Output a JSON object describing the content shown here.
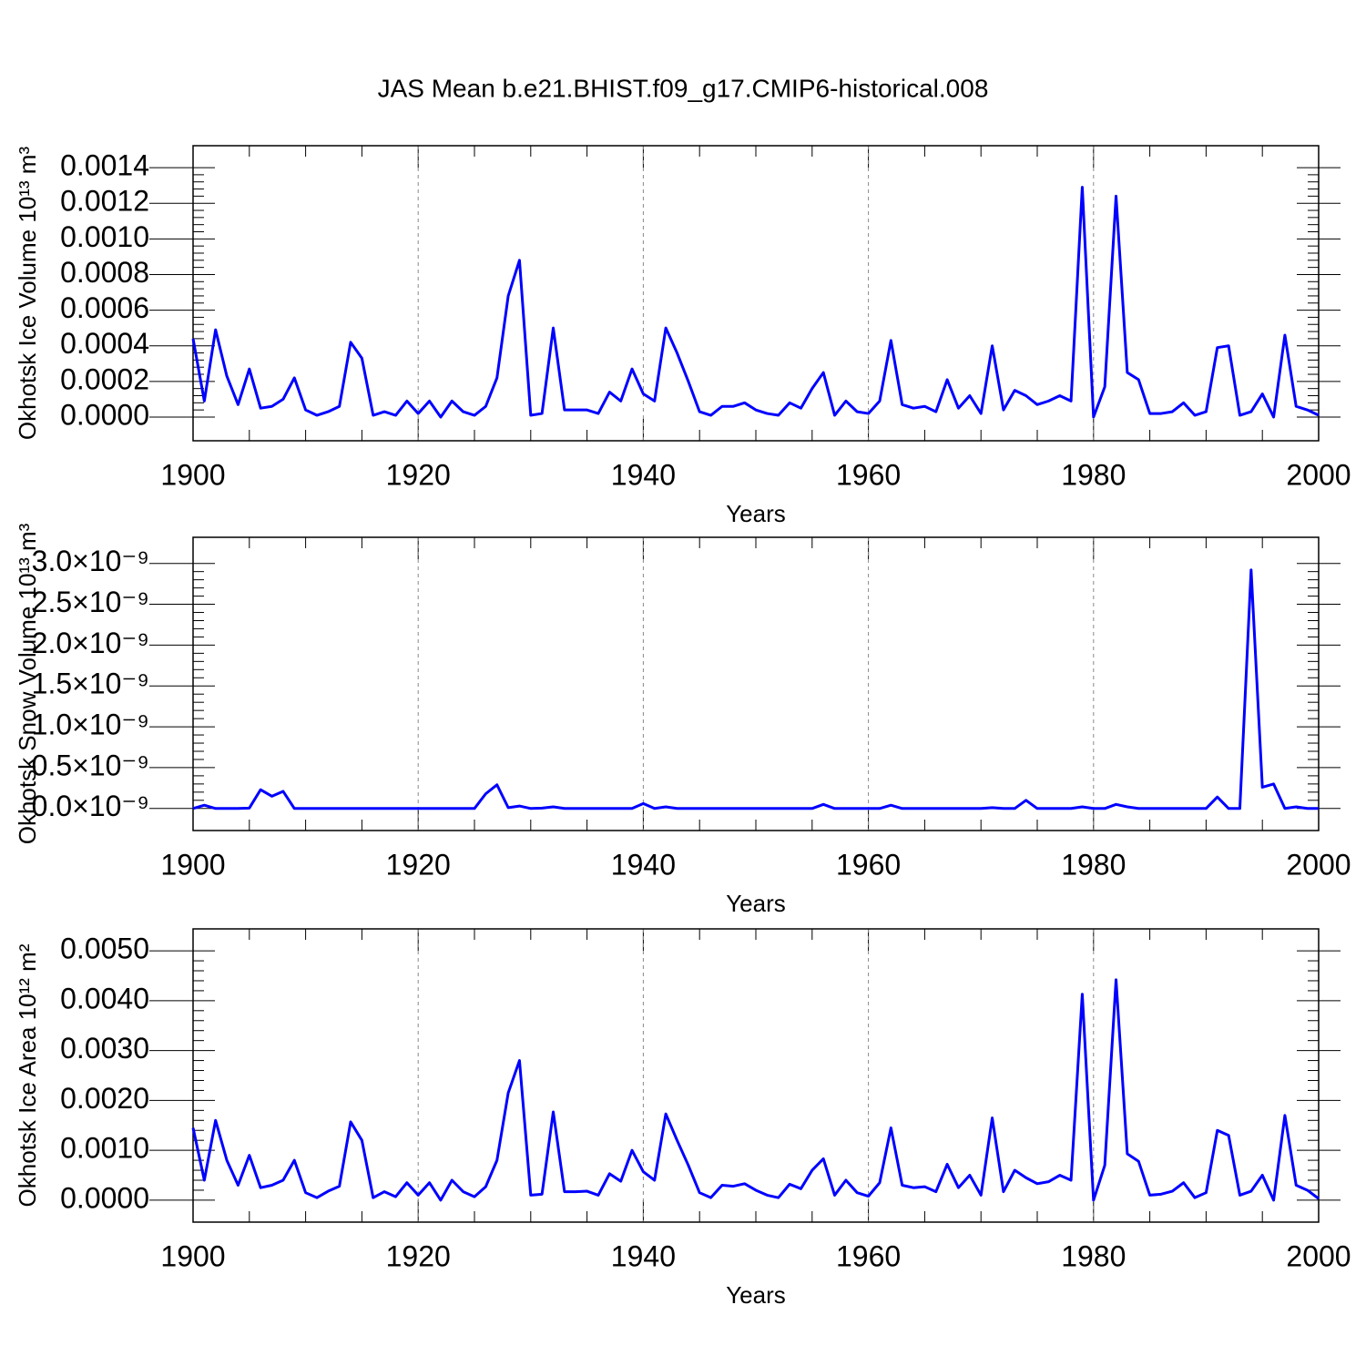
{
  "title": "JAS Mean b.e21.BHIST.f09_g17.CMIP6-historical.008",
  "chart_data": [
    {
      "type": "line",
      "ylabel": "Okhotsk Ice Volume 10¹³ m³",
      "xlabel": "Years",
      "color": "#0000ff",
      "xlim": [
        1900,
        2000
      ],
      "xticks": [
        1900,
        1920,
        1940,
        1960,
        1980,
        2000
      ],
      "xgrid": true,
      "ylim": [
        -0.000133,
        0.001523
      ],
      "yticks": [
        {
          "value": 0,
          "label": "0.0000"
        },
        {
          "value": 0.0002,
          "label": "0.0002"
        },
        {
          "value": 0.0004,
          "label": "0.0004"
        },
        {
          "value": 0.0006,
          "label": "0.0006"
        },
        {
          "value": 0.0008,
          "label": "0.0008"
        },
        {
          "value": 0.001,
          "label": "0.0010"
        },
        {
          "value": 0.0012,
          "label": "0.0012"
        },
        {
          "value": 0.0014,
          "label": "0.0014"
        }
      ],
      "x": [
        1900,
        1901,
        1902,
        1903,
        1904,
        1905,
        1906,
        1907,
        1908,
        1909,
        1910,
        1911,
        1912,
        1913,
        1914,
        1915,
        1916,
        1917,
        1918,
        1919,
        1920,
        1921,
        1922,
        1923,
        1924,
        1925,
        1926,
        1927,
        1928,
        1929,
        1930,
        1931,
        1932,
        1933,
        1934,
        1935,
        1936,
        1937,
        1938,
        1939,
        1940,
        1941,
        1942,
        1943,
        1944,
        1945,
        1946,
        1947,
        1948,
        1949,
        1950,
        1951,
        1952,
        1953,
        1954,
        1955,
        1956,
        1957,
        1958,
        1959,
        1960,
        1961,
        1962,
        1963,
        1964,
        1965,
        1966,
        1967,
        1968,
        1969,
        1970,
        1971,
        1972,
        1973,
        1974,
        1975,
        1976,
        1977,
        1978,
        1979,
        1980,
        1981,
        1982,
        1983,
        1984,
        1985,
        1986,
        1987,
        1988,
        1989,
        1990,
        1991,
        1992,
        1993,
        1994,
        1995,
        1996,
        1997,
        1998,
        1999,
        2000
      ],
      "values": [
        0.00044,
        9e-05,
        0.00049,
        0.00023,
        7e-05,
        0.00027,
        5e-05,
        6e-05,
        0.0001,
        0.00022,
        4e-05,
        1e-05,
        3e-05,
        6e-05,
        0.00042,
        0.00033,
        1e-05,
        3e-05,
        1e-05,
        9e-05,
        2e-05,
        9e-05,
        0.0,
        9e-05,
        3e-05,
        1e-05,
        6e-05,
        0.00022,
        0.00068,
        0.00088,
        1e-05,
        2e-05,
        0.0005,
        4e-05,
        4e-05,
        4e-05,
        2e-05,
        0.00014,
        9e-05,
        0.00027,
        0.00013,
        9e-05,
        0.0005,
        0.00036,
        0.0002,
        3e-05,
        1e-05,
        6e-05,
        6e-05,
        8e-05,
        4e-05,
        2e-05,
        1e-05,
        8e-05,
        5e-05,
        0.00016,
        0.00025,
        1e-05,
        9e-05,
        3e-05,
        2e-05,
        9e-05,
        0.00043,
        7e-05,
        5e-05,
        6e-05,
        3e-05,
        0.00021,
        5e-05,
        0.00012,
        2e-05,
        0.0004,
        4e-05,
        0.00015,
        0.00012,
        7e-05,
        9e-05,
        0.00012,
        9e-05,
        0.00129,
        0.0,
        0.00017,
        0.00124,
        0.00025,
        0.00021,
        2e-05,
        2e-05,
        3e-05,
        8e-05,
        1e-05,
        3e-05,
        0.00039,
        0.0004,
        1e-05,
        3e-05,
        0.00013,
        0.0,
        0.00046,
        6e-05,
        4e-05,
        1e-05
      ]
    },
    {
      "type": "line",
      "ylabel": "Okhotsk Snow Volume 10¹³ m³",
      "xlabel": "Years",
      "color": "#0000ff",
      "xlim": [
        1900,
        2000
      ],
      "xticks": [
        1900,
        1920,
        1940,
        1960,
        1980,
        2000
      ],
      "xgrid": true,
      "ylim": [
        -2.7e-10,
        3.32e-09
      ],
      "yticks": [
        {
          "value": 0,
          "label": "0.0×10⁻⁹"
        },
        {
          "value": 5e-10,
          "label": "0.5×10⁻⁹"
        },
        {
          "value": 1e-09,
          "label": "1.0×10⁻⁹"
        },
        {
          "value": 1.5e-09,
          "label": "1.5×10⁻⁹"
        },
        {
          "value": 2e-09,
          "label": "2.0×10⁻⁹"
        },
        {
          "value": 2.5e-09,
          "label": "2.5×10⁻⁹"
        },
        {
          "value": 3e-09,
          "label": "3.0×10⁻⁹"
        }
      ],
      "x": [
        1900,
        1901,
        1902,
        1903,
        1904,
        1905,
        1906,
        1907,
        1908,
        1909,
        1910,
        1911,
        1912,
        1913,
        1914,
        1915,
        1916,
        1917,
        1918,
        1919,
        1920,
        1921,
        1922,
        1923,
        1924,
        1925,
        1926,
        1927,
        1928,
        1929,
        1930,
        1931,
        1932,
        1933,
        1934,
        1935,
        1936,
        1937,
        1938,
        1939,
        1940,
        1941,
        1942,
        1943,
        1944,
        1945,
        1946,
        1947,
        1948,
        1949,
        1950,
        1951,
        1952,
        1953,
        1954,
        1955,
        1956,
        1957,
        1958,
        1959,
        1960,
        1961,
        1962,
        1963,
        1964,
        1965,
        1966,
        1967,
        1968,
        1969,
        1970,
        1971,
        1972,
        1973,
        1974,
        1975,
        1976,
        1977,
        1978,
        1979,
        1980,
        1981,
        1982,
        1983,
        1984,
        1985,
        1986,
        1987,
        1988,
        1989,
        1990,
        1991,
        1992,
        1993,
        1994,
        1995,
        1996,
        1997,
        1998,
        1999,
        2000
      ],
      "values": [
        0,
        4e-11,
        0,
        0,
        0,
        5e-12,
        2.3e-10,
        1.5e-10,
        2.1e-10,
        0,
        0,
        0,
        0,
        0,
        0,
        0,
        0,
        0,
        0,
        0,
        0,
        0,
        0,
        0,
        0,
        0,
        1.8e-10,
        2.9e-10,
        1e-11,
        3e-11,
        0,
        5e-12,
        2e-11,
        0,
        0,
        0,
        0,
        0,
        0,
        0,
        6e-11,
        0,
        2e-11,
        0,
        0,
        0,
        0,
        0,
        0,
        0,
        0,
        0,
        0,
        0,
        0,
        0,
        5e-11,
        0,
        0,
        0,
        0,
        0,
        4e-11,
        0,
        0,
        0,
        0,
        0,
        0,
        0,
        0,
        1e-11,
        0,
        0,
        1e-10,
        0,
        0,
        0,
        0,
        2e-11,
        0,
        0,
        5e-11,
        2e-11,
        0,
        0,
        0,
        0,
        0,
        0,
        0,
        1.4e-10,
        0,
        0,
        2.92e-09,
        2.6e-10,
        3e-10,
        0,
        2e-11,
        0,
        0
      ]
    },
    {
      "type": "line",
      "ylabel": "Okhotsk Ice Area 10¹² m²",
      "xlabel": "Years",
      "color": "#0000ff",
      "xlim": [
        1900,
        2000
      ],
      "xticks": [
        1900,
        1920,
        1940,
        1960,
        1980,
        2000
      ],
      "xgrid": true,
      "ylim": [
        -0.00044,
        0.00544
      ],
      "yticks": [
        {
          "value": 0,
          "label": "0.0000"
        },
        {
          "value": 0.001,
          "label": "0.0010"
        },
        {
          "value": 0.002,
          "label": "0.0020"
        },
        {
          "value": 0.003,
          "label": "0.0030"
        },
        {
          "value": 0.004,
          "label": "0.0040"
        },
        {
          "value": 0.005,
          "label": "0.0050"
        }
      ],
      "x": [
        1900,
        1901,
        1902,
        1903,
        1904,
        1905,
        1906,
        1907,
        1908,
        1909,
        1910,
        1911,
        1912,
        1913,
        1914,
        1915,
        1916,
        1917,
        1918,
        1919,
        1920,
        1921,
        1922,
        1923,
        1924,
        1925,
        1926,
        1927,
        1928,
        1929,
        1930,
        1931,
        1932,
        1933,
        1934,
        1935,
        1936,
        1937,
        1938,
        1939,
        1940,
        1941,
        1942,
        1943,
        1944,
        1945,
        1946,
        1947,
        1948,
        1949,
        1950,
        1951,
        1952,
        1953,
        1954,
        1955,
        1956,
        1957,
        1958,
        1959,
        1960,
        1961,
        1962,
        1963,
        1964,
        1965,
        1966,
        1967,
        1968,
        1969,
        1970,
        1971,
        1972,
        1973,
        1974,
        1975,
        1976,
        1977,
        1978,
        1979,
        1980,
        1981,
        1982,
        1983,
        1984,
        1985,
        1986,
        1987,
        1988,
        1989,
        1990,
        1991,
        1992,
        1993,
        1994,
        1995,
        1996,
        1997,
        1998,
        1999,
        2000
      ],
      "values": [
        0.00145,
        0.0004,
        0.0016,
        0.0008,
        0.0003,
        0.0009,
        0.00025,
        0.0003,
        0.0004,
        0.0008,
        0.00015,
        5e-05,
        0.00018,
        0.00028,
        0.00157,
        0.0012,
        5e-05,
        0.00017,
        7e-05,
        0.00035,
        0.0001,
        0.00035,
        0.0,
        0.0004,
        0.00017,
        7e-05,
        0.00027,
        0.0008,
        0.00215,
        0.0028,
        0.0001,
        0.00012,
        0.00177,
        0.00017,
        0.00017,
        0.00018,
        0.0001,
        0.00053,
        0.00038,
        0.001,
        0.00057,
        0.0004,
        0.00173,
        0.0012,
        0.0007,
        0.00015,
        5e-05,
        0.0003,
        0.00028,
        0.00033,
        0.0002,
        0.0001,
        5e-05,
        0.00032,
        0.00023,
        0.0006,
        0.00083,
        0.0001,
        0.0004,
        0.00015,
        8e-05,
        0.00035,
        0.00145,
        0.0003,
        0.00025,
        0.00027,
        0.00017,
        0.00072,
        0.00025,
        0.0005,
        0.0001,
        0.00165,
        0.00017,
        0.0006,
        0.00045,
        0.00033,
        0.00037,
        0.0005,
        0.0004,
        0.00413,
        0.0,
        0.0007,
        0.00442,
        0.00093,
        0.00078,
        0.0001,
        0.00012,
        0.00018,
        0.00035,
        5e-05,
        0.00015,
        0.0014,
        0.0013,
        0.0001,
        0.00018,
        0.0005,
        0.0,
        0.0017,
        0.0003,
        0.0002,
        3e-05
      ]
    }
  ]
}
